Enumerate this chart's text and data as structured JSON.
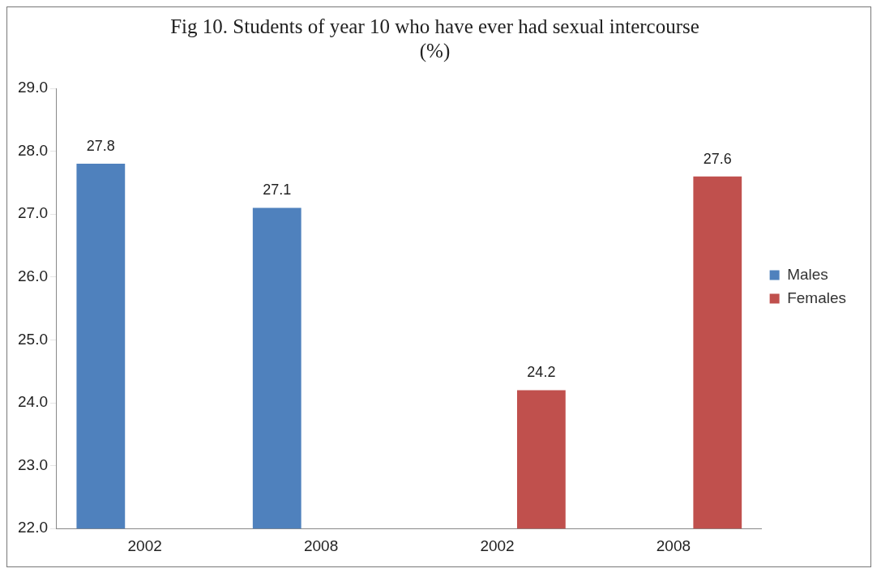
{
  "chart_data": {
    "type": "bar",
    "title": [
      "Fig 10. Students of year 10 who have ever had sexual intercourse",
      "(%)"
    ],
    "categories": [
      "2002",
      "2008",
      "2002",
      "2008"
    ],
    "series": [
      {
        "name": "Males",
        "color": "#4f81bd",
        "values": [
          27.8,
          27.1,
          null,
          null
        ]
      },
      {
        "name": "Females",
        "color": "#c0504d",
        "values": [
          null,
          null,
          24.2,
          27.6
        ]
      }
    ],
    "ylim": [
      22,
      29
    ],
    "yticks": [
      {
        "value": 22,
        "label": "22.0"
      },
      {
        "value": 23,
        "label": "23.0"
      },
      {
        "value": 24,
        "label": "24.0"
      },
      {
        "value": 25,
        "label": "25.0"
      },
      {
        "value": 26,
        "label": "26.0"
      },
      {
        "value": 27,
        "label": "27.0"
      },
      {
        "value": 28,
        "label": "28.0"
      },
      {
        "value": 29,
        "label": "29.0"
      }
    ],
    "grid": false,
    "legend": "right",
    "data_labels": true
  }
}
